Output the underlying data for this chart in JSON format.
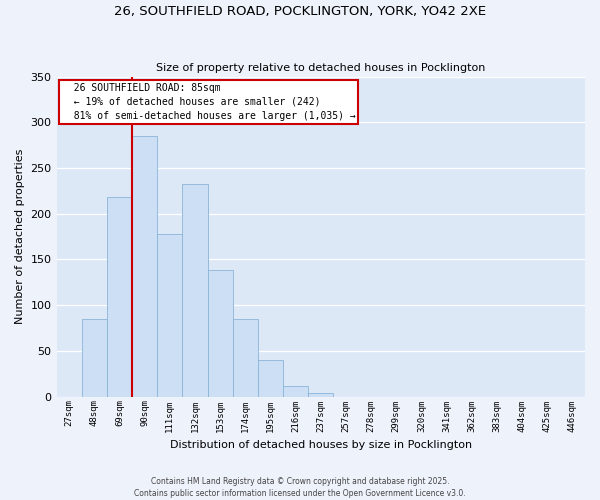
{
  "title": "26, SOUTHFIELD ROAD, POCKLINGTON, YORK, YO42 2XE",
  "subtitle": "Size of property relative to detached houses in Pocklington",
  "xlabel": "Distribution of detached houses by size in Pocklington",
  "ylabel": "Number of detached properties",
  "bar_labels": [
    "27sqm",
    "48sqm",
    "69sqm",
    "90sqm",
    "111sqm",
    "132sqm",
    "153sqm",
    "174sqm",
    "195sqm",
    "216sqm",
    "237sqm",
    "257sqm",
    "278sqm",
    "299sqm",
    "320sqm",
    "341sqm",
    "362sqm",
    "383sqm",
    "404sqm",
    "425sqm",
    "446sqm"
  ],
  "bar_values": [
    0,
    85,
    218,
    285,
    178,
    233,
    138,
    85,
    40,
    12,
    4,
    0,
    0,
    0,
    0,
    0,
    0,
    0,
    0,
    0,
    0
  ],
  "bar_color": "#ccdff5",
  "bar_edge_color": "#8ab4d8",
  "ylim": [
    0,
    350
  ],
  "yticks": [
    0,
    50,
    100,
    150,
    200,
    250,
    300,
    350
  ],
  "vline_x": 3.0,
  "vline_color": "#cc0000",
  "annotation_title": "26 SOUTHFIELD ROAD: 85sqm",
  "annotation_line1": "← 19% of detached houses are smaller (242)",
  "annotation_line2": "81% of semi-detached houses are larger (1,035) →",
  "annotation_box_color": "#ffffff",
  "annotation_box_edge": "#cc0000",
  "footer1": "Contains HM Land Registry data © Crown copyright and database right 2025.",
  "footer2": "Contains public sector information licensed under the Open Government Licence v3.0.",
  "bg_color": "#eef2fb",
  "plot_bg_color": "#dde8f7"
}
